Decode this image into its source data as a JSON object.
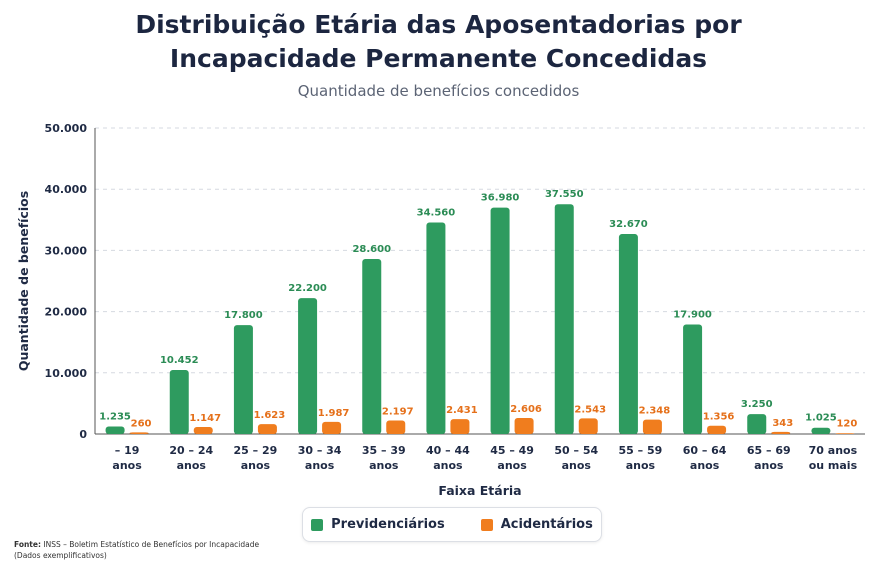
{
  "title_line1": "Distribuição Etária das Aposentadorias por",
  "title_line2": "Incapacidade Permanente Concedidas",
  "subtitle": "Quantidade de benefícios concedidos",
  "source_label": "Fonte:",
  "source_text": "INSS – Boletim Estatístico de Benefícios por Incapacidade",
  "source_note": "(Dados exemplificativos)",
  "chart_data": {
    "type": "bar",
    "title": "Distribuição Etária das Aposentadorias por Incapacidade Permanente Concedidas",
    "subtitle": "Quantidade de benefícios concedidos",
    "xlabel": "Faixa Etária",
    "ylabel": "Quantidade de benefícios",
    "ylim": [
      0,
      50000
    ],
    "yticks": [
      "0",
      "10.000",
      "20.000",
      "30.000",
      "40.000",
      "50.000"
    ],
    "grid": "horizontal dashed",
    "legend_position": "bottom",
    "categories": [
      [
        "– 19",
        "anos"
      ],
      [
        "20 – 24",
        "anos"
      ],
      [
        "25 – 29",
        "anos"
      ],
      [
        "30 – 34",
        "anos"
      ],
      [
        "35 – 39",
        "anos"
      ],
      [
        "40 – 44",
        "anos"
      ],
      [
        "45 – 49",
        "anos"
      ],
      [
        "50 – 54",
        "anos"
      ],
      [
        "55 – 59",
        "anos"
      ],
      [
        "60 – 64",
        "anos"
      ],
      [
        "65 – 69",
        "anos"
      ],
      [
        "70 anos",
        "ou mais"
      ]
    ],
    "series": [
      {
        "name": "Previdenciários",
        "color": "#2e9b5f",
        "values": [
          1235,
          10452,
          17800,
          22200,
          28600,
          34560,
          36980,
          37550,
          32670,
          17900,
          3250,
          1025
        ],
        "labels": [
          "1.235",
          "10.452",
          "17.800",
          "22.200",
          "28.600",
          "34.560",
          "36.980",
          "37.550",
          "32.670",
          "17.900",
          "3.250",
          "1.025"
        ]
      },
      {
        "name": "Acidentários",
        "color": "#f07d1e",
        "values": [
          260,
          1147,
          1623,
          1987,
          2197,
          2431,
          2606,
          2543,
          2348,
          1356,
          343,
          120
        ],
        "labels": [
          "260",
          "1.147",
          "1.623",
          "1.987",
          "2.197",
          "2.431",
          "2.606",
          "2.543",
          "2.348",
          "1.356",
          "343",
          "120"
        ]
      }
    ]
  }
}
